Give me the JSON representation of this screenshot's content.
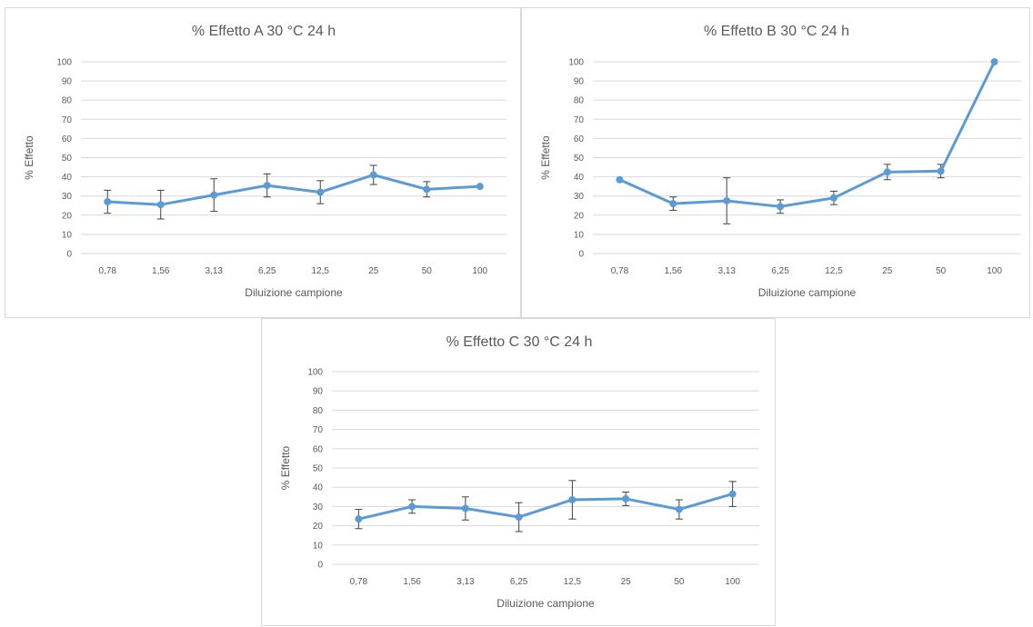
{
  "chart_data": [
    {
      "type": "line",
      "title": "% Effetto A 30 °C 24 h",
      "xlabel": "Diluizione campione",
      "ylabel": "% Effetto",
      "categories": [
        "0,78",
        "1,56",
        "3,13",
        "6,25",
        "12,5",
        "25",
        "50",
        "100"
      ],
      "yticks": [
        "0",
        "10",
        "20",
        "30",
        "40",
        "50",
        "60",
        "70",
        "80",
        "90",
        "100"
      ],
      "ylim": [
        0,
        100
      ],
      "grid": true,
      "legend": "none",
      "color": "#5b9bd5",
      "series": [
        {
          "values": [
            27,
            25.5,
            30.5,
            35.5,
            32,
            41,
            33.5,
            35
          ],
          "error": [
            6,
            7.5,
            8.5,
            6,
            6,
            5,
            4,
            0
          ]
        }
      ]
    },
    {
      "type": "line",
      "title": "% Effetto B 30 °C 24 h",
      "xlabel": "Diluizione campione",
      "ylabel": "% Effetto",
      "categories": [
        "0,78",
        "1,56",
        "3,13",
        "6,25",
        "12,5",
        "25",
        "50",
        "100"
      ],
      "yticks": [
        "0",
        "10",
        "20",
        "30",
        "40",
        "50",
        "60",
        "70",
        "80",
        "90",
        "100"
      ],
      "ylim": [
        0,
        100
      ],
      "grid": true,
      "legend": "none",
      "color": "#5b9bd5",
      "series": [
        {
          "values": [
            38.5,
            26,
            27.5,
            24.5,
            29,
            42.5,
            43,
            100
          ],
          "error": [
            0,
            3.5,
            12,
            3.5,
            3.5,
            4,
            3.5,
            0
          ]
        }
      ]
    },
    {
      "type": "line",
      "title": "% Effetto C 30 °C 24 h",
      "xlabel": "Diluizione campione",
      "ylabel": "% Effetto",
      "categories": [
        "0,78",
        "1,56",
        "3,13",
        "6,25",
        "12,5",
        "25",
        "50",
        "100"
      ],
      "yticks": [
        "0",
        "10",
        "20",
        "30",
        "40",
        "50",
        "60",
        "70",
        "80",
        "90",
        "100"
      ],
      "ylim": [
        0,
        100
      ],
      "grid": true,
      "legend": "none",
      "color": "#5b9bd5",
      "series": [
        {
          "values": [
            23.5,
            30,
            29,
            24.5,
            33.5,
            34,
            28.5,
            36.5
          ],
          "error": [
            5,
            3.5,
            6,
            7.5,
            10,
            3.5,
            5,
            6.5
          ]
        }
      ]
    }
  ]
}
